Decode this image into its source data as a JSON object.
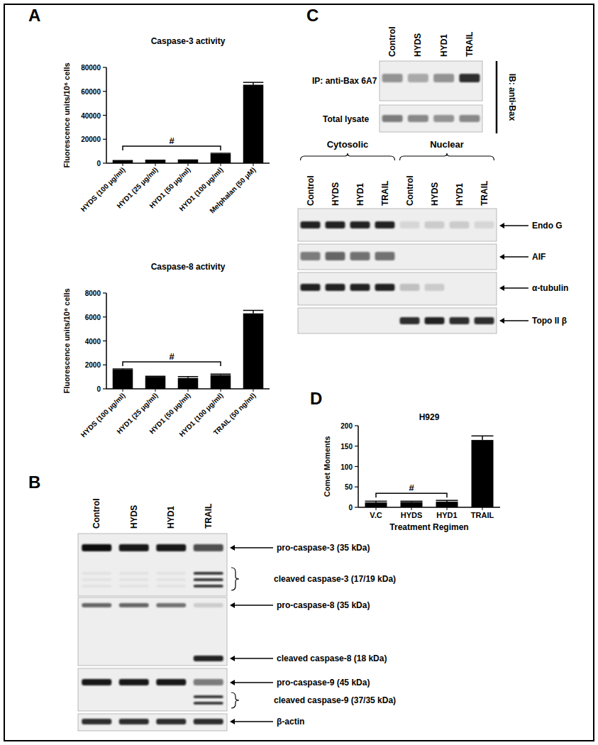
{
  "chart_data": [
    {
      "type": "bar",
      "title": "Caspase-3 activity",
      "y_label": "Fluorescence units/10⁶ cells",
      "categories": [
        "HYDS (100 μg/ml)",
        "HYD1 (25 μg/ml)",
        "HYD1 (50 μg/ml)",
        "HYD1 (100 μg/ml)",
        "Melphalan (50 μM)"
      ],
      "values": [
        2000,
        2300,
        2500,
        7800,
        65500
      ],
      "errors": [
        200,
        200,
        200,
        500,
        2000
      ],
      "color": "#000000",
      "ylim": [
        0,
        80000
      ],
      "yticks": [
        0,
        20000,
        40000,
        60000,
        80000
      ],
      "grid": false,
      "annotation": "#"
    },
    {
      "type": "bar",
      "title": "Caspase-8 activity",
      "y_label": "Fluorescence units/10⁶ cells",
      "categories": [
        "HYDS (100 μg/ml)",
        "HYD1 (25 μg/ml)",
        "HYD1 (50 μg/ml)",
        "HYD1 (100 μg/ml)",
        "TRAIL (50 ng/ml)"
      ],
      "values": [
        1600,
        1000,
        900,
        1150,
        6300
      ],
      "errors": [
        60,
        50,
        120,
        80,
        250
      ],
      "color": "#000000",
      "ylim": [
        0,
        8000
      ],
      "yticks": [
        0,
        2000,
        4000,
        6000,
        8000
      ],
      "grid": false,
      "annotation": "#"
    },
    {
      "type": "bar",
      "title": "H929",
      "y_label": "Comet Moments",
      "x_label": "Treatment Regimen",
      "categories": [
        "V.C",
        "HYDS",
        "HYD1",
        "TRAIL"
      ],
      "values": [
        12,
        13,
        14,
        165
      ],
      "errors": [
        3,
        2,
        3,
        10
      ],
      "color": "#000000",
      "ylim": [
        0,
        200
      ],
      "yticks": [
        0,
        50,
        100,
        150,
        200
      ],
      "grid": false,
      "annotation": "#"
    }
  ],
  "panel_labels": [
    "A",
    "B",
    "C",
    "D"
  ],
  "blot_b": {
    "lanes": [
      "Control",
      "HYDS",
      "HYD1",
      "TRAIL"
    ],
    "rows": [
      {
        "label": "pro-caspase-3 (35 kDa)",
        "intensity": [
          1,
          0.95,
          0.95,
          0.7
        ]
      },
      {
        "label": "cleaved caspase-3 (17/19 kDa)",
        "intensity": [
          0.05,
          0.05,
          0.05,
          0.8
        ]
      },
      {
        "label": "pro-caspase-8 (35 kDa)",
        "intensity": [
          0.6,
          0.6,
          0.55,
          0.15
        ]
      },
      {
        "label": "cleaved caspase-8 (18 kDa)",
        "intensity": [
          0,
          0,
          0,
          0.9
        ]
      },
      {
        "label": "pro-caspase-9 (45 kDa)",
        "intensity": [
          0.95,
          0.95,
          0.95,
          0.5
        ]
      },
      {
        "label": "cleaved caspase-9 (37/35 kDa)",
        "intensity": [
          0,
          0,
          0,
          0.8
        ]
      },
      {
        "label": "β-actin",
        "intensity": [
          0.85,
          0.85,
          0.85,
          0.85
        ]
      }
    ]
  },
  "blot_c_bax": {
    "lanes": [
      "Control",
      "HYDS",
      "HYD1",
      "TRAIL"
    ],
    "side_label": "IB: anti-Bax",
    "rows": [
      {
        "label": "IP: anti-Bax 6A7",
        "intensity": [
          0.4,
          0.3,
          0.4,
          0.85
        ]
      },
      {
        "label": "Total lysate",
        "intensity": [
          0.5,
          0.45,
          0.4,
          0.45
        ]
      }
    ]
  },
  "blot_c_fractions": {
    "groups": [
      {
        "name": "Cytosolic",
        "lanes": [
          "Control",
          "HYDS",
          "HYD1",
          "TRAIL"
        ]
      },
      {
        "name": "Nuclear",
        "lanes": [
          "Control",
          "HYDS",
          "HYD1",
          "TRAIL"
        ]
      }
    ],
    "rows": [
      {
        "label": "Endo G",
        "intensity": [
          0.9,
          0.9,
          0.9,
          0.9,
          0.1,
          0.15,
          0.15,
          0.1
        ]
      },
      {
        "label": "AIF",
        "intensity": [
          0.5,
          0.6,
          0.55,
          0.55,
          0,
          0,
          0,
          0
        ]
      },
      {
        "label": "α-tubulin",
        "intensity": [
          0.9,
          0.9,
          0.9,
          0.9,
          0.2,
          0.15,
          0,
          0
        ]
      },
      {
        "label": "Topo II β",
        "intensity": [
          0,
          0,
          0,
          0,
          0.85,
          0.9,
          0.85,
          0.85
        ]
      }
    ]
  }
}
